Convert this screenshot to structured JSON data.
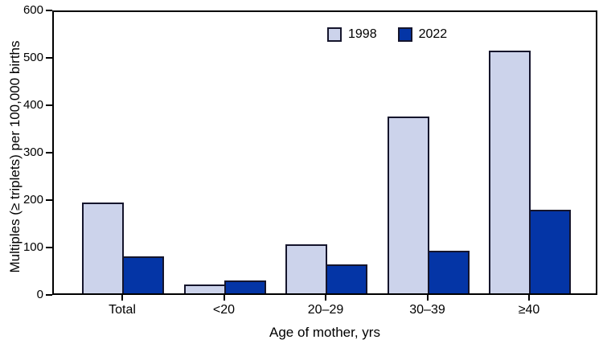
{
  "chart_data": {
    "type": "bar",
    "title": "",
    "categories": [
      "Total",
      "<20",
      "20–29",
      "30–39",
      "≥40"
    ],
    "series": [
      {
        "name": "1998",
        "color": "#ccd3eb",
        "values": [
          193,
          18,
          105,
          377,
          517
        ]
      },
      {
        "name": "2022",
        "color": "#0435a6",
        "values": [
          79,
          28,
          62,
          91,
          179
        ]
      }
    ],
    "xlabel": "Age of mother, yrs",
    "ylabel": "Multiples (≥ triplets) per 100,000 births",
    "ylim": [
      0,
      600
    ],
    "yticks": [
      0,
      100,
      200,
      300,
      400,
      500,
      600
    ],
    "grid": false,
    "legend_position": "top-center",
    "colors": {
      "frame": "#000000",
      "bar_border": "#15152c",
      "series_1998_fill": "#ccd3eb",
      "series_2022_fill": "#0435a6",
      "background": "#ffffff",
      "text": "#000000"
    }
  }
}
